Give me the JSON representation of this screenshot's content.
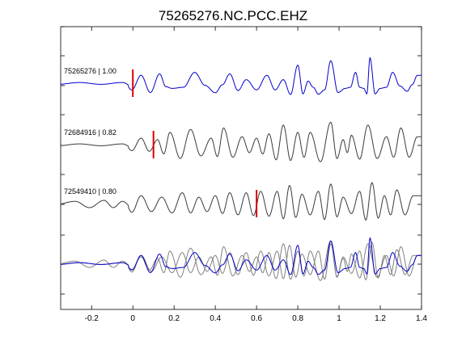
{
  "chart_data": {
    "type": "line",
    "title": "75265276.NC.PCC.EHZ",
    "xlabel": "",
    "ylabel": "",
    "xlim": [
      -0.35,
      1.4
    ],
    "x_ticks": [
      -0.2,
      0,
      0.2,
      0.4,
      0.6,
      0.8,
      1,
      1.2,
      1.4
    ],
    "x_tick_labels": [
      "-0.2",
      "0",
      "0.2",
      "0.4",
      "0.6",
      "0.8",
      "1",
      "1.2",
      "1.4"
    ],
    "grid": false,
    "legend": "none",
    "colors": {
      "master": "#0000cc",
      "neighbor": "#3a3a3a",
      "overlay_neighbor": "#808080",
      "pick": "#dd0000",
      "axes": "#000000"
    },
    "traces": [
      {
        "label": "75265276 | 1.00",
        "pick_time": 0.0,
        "color": "master",
        "peaks": [
          [
            -0.05,
            0.3
          ],
          [
            0.04,
            0.6
          ],
          [
            0.13,
            0.7
          ],
          [
            0.19,
            -0.3
          ],
          [
            0.3,
            0.8
          ],
          [
            0.4,
            -0.6
          ],
          [
            0.47,
            0.7
          ],
          [
            0.55,
            0.3
          ],
          [
            0.65,
            0.6
          ],
          [
            0.73,
            0.3
          ],
          [
            0.8,
            1.3
          ],
          [
            0.85,
            0.2
          ],
          [
            0.9,
            -0.7
          ],
          [
            0.96,
            1.6
          ],
          [
            1.03,
            -0.3
          ],
          [
            1.08,
            0.8
          ],
          [
            1.12,
            -0.3
          ],
          [
            1.15,
            1.8
          ],
          [
            1.2,
            -0.3
          ],
          [
            1.26,
            0.8
          ],
          [
            1.33,
            -0.5
          ],
          [
            1.38,
            0.6
          ]
        ]
      },
      {
        "label": "72684916 | 0.82",
        "pick_time": 0.1,
        "color": "neighbor",
        "peaks": [
          [
            -0.05,
            0.3
          ],
          [
            0.04,
            0.5
          ],
          [
            0.12,
            0.4
          ],
          [
            0.18,
            0.9
          ],
          [
            0.28,
            1.1
          ],
          [
            0.38,
            0.5
          ],
          [
            0.44,
            1.2
          ],
          [
            0.53,
            0.6
          ],
          [
            0.6,
            0.5
          ],
          [
            0.66,
            0.8
          ],
          [
            0.73,
            1.4
          ],
          [
            0.8,
            0.9
          ],
          [
            0.86,
            0.9
          ],
          [
            0.96,
            1.6
          ],
          [
            1.02,
            0.4
          ],
          [
            1.06,
            0.7
          ],
          [
            1.14,
            1.4
          ],
          [
            1.23,
            0.6
          ],
          [
            1.3,
            1.2
          ],
          [
            1.38,
            0.6
          ]
        ]
      },
      {
        "label": "72549410 | 0.80",
        "pick_time": 0.6,
        "color": "neighbor",
        "peaks": [
          [
            -0.28,
            0.6
          ],
          [
            -0.14,
            0.8
          ],
          [
            -0.05,
            0.6
          ],
          [
            0.04,
            0.6
          ],
          [
            0.14,
            0.5
          ],
          [
            0.24,
            0.8
          ],
          [
            0.32,
            0.5
          ],
          [
            0.4,
            0.6
          ],
          [
            0.47,
            0.8
          ],
          [
            0.55,
            0.8
          ],
          [
            0.62,
            0.9
          ],
          [
            0.7,
            0.9
          ],
          [
            0.76,
            1.3
          ],
          [
            0.82,
            0.7
          ],
          [
            0.9,
            0.9
          ],
          [
            0.96,
            1.4
          ],
          [
            1.02,
            0.5
          ],
          [
            1.1,
            0.9
          ],
          [
            1.16,
            1.5
          ],
          [
            1.22,
            0.6
          ],
          [
            1.28,
            1.0
          ],
          [
            1.36,
            0.6
          ]
        ]
      }
    ]
  }
}
